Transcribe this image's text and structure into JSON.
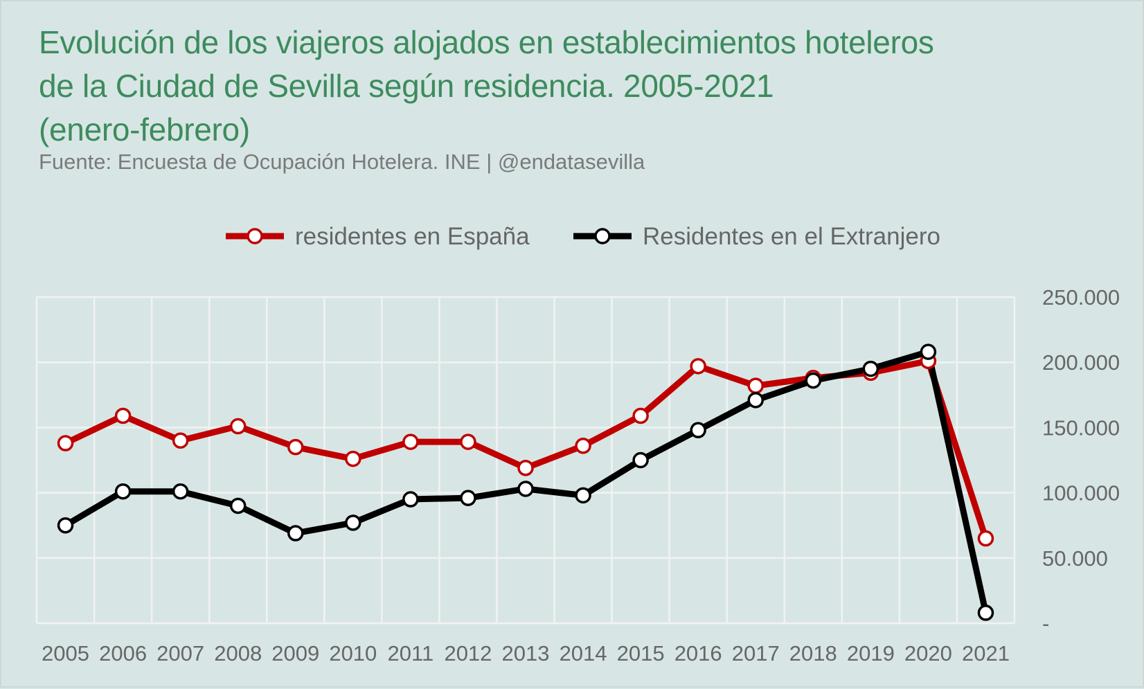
{
  "colors": {
    "background": "#d7e6e4",
    "title": "#3d8b5e",
    "series_1": "#c00000",
    "series_2": "#000000",
    "grid": "#f2f2f2"
  },
  "chart_data": {
    "type": "line",
    "title_lines": [
      "Evolución de los viajeros alojados en establecimientos hoteleros",
      "de la Ciudad de Sevilla según residencia. 2005-2021",
      "(enero-febrero)"
    ],
    "subtitle": "Fuente: Encuesta de Ocupación Hotelera. INE | @endatasevilla",
    "categories": [
      "2005",
      "2006",
      "2007",
      "2008",
      "2009",
      "2010",
      "2011",
      "2012",
      "2013",
      "2014",
      "2015",
      "2016",
      "2017",
      "2018",
      "2019",
      "2020",
      "2021"
    ],
    "series": [
      {
        "name": "residentes en España",
        "color": "#c00000",
        "values": [
          138000,
          159000,
          140000,
          151000,
          135000,
          126000,
          139000,
          139000,
          119000,
          136000,
          159000,
          197000,
          182000,
          188000,
          192000,
          201000,
          65000
        ]
      },
      {
        "name": "Residentes en el Extranjero",
        "color": "#000000",
        "values": [
          75000,
          101000,
          101000,
          90000,
          69000,
          77000,
          95000,
          96000,
          103000,
          98000,
          125000,
          148000,
          171000,
          186000,
          195000,
          208000,
          8000
        ]
      }
    ],
    "ylim": [
      0,
      250000
    ],
    "yticks": [
      0,
      50000,
      100000,
      150000,
      200000,
      250000
    ],
    "ytick_labels": [
      "-",
      "50.000",
      "100.000",
      "150.000",
      "200.000",
      "250.000"
    ],
    "yaxis_side": "right",
    "grid": true,
    "legend_position": "top-center",
    "xlabel": "",
    "ylabel": ""
  }
}
